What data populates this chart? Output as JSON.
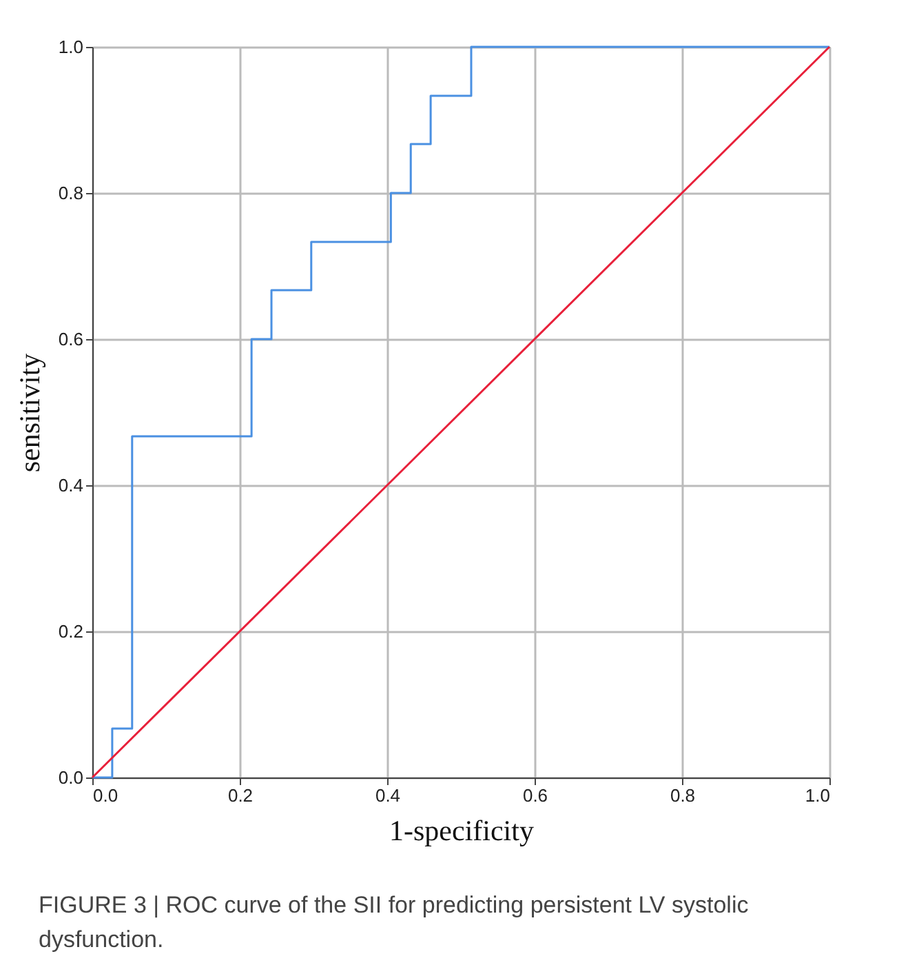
{
  "chart_data": {
    "type": "line",
    "xlabel": "1-specificity",
    "ylabel": "sensitivity",
    "annotations": [
      "FIGURE 3 | ROC curve of the SII for predicting persistent LV systolic dysfunction."
    ],
    "series": [
      {
        "type": "step",
        "color": "#4a90e2",
        "x": [
          0,
          0.027,
          0.054,
          0.216,
          0.243,
          0.297,
          0.405,
          0.432,
          0.459,
          0.514,
          1
        ],
        "values": [
          0,
          0.067,
          0.467,
          0.6,
          0.667,
          0.733,
          0.8,
          0.867,
          0.933,
          1,
          1
        ]
      },
      {
        "type": "line",
        "color": "#e8203a",
        "x": [
          0,
          1
        ],
        "values": [
          0,
          1
        ]
      }
    ],
    "xlim": [
      0,
      1
    ],
    "ylim": [
      0,
      1
    ],
    "xticks": [
      {
        "value": 0,
        "label": "0.0"
      },
      {
        "value": 0.2,
        "label": "0.2"
      },
      {
        "value": 0.4,
        "label": "0.4"
      },
      {
        "value": 0.6,
        "label": "0.6"
      },
      {
        "value": 0.8,
        "label": "0.8"
      },
      {
        "value": 1,
        "label": "1.0"
      }
    ],
    "yticks": [
      {
        "value": 0,
        "label": "0.0"
      },
      {
        "value": 0.2,
        "label": "0.2"
      },
      {
        "value": 0.4,
        "label": "0.4"
      },
      {
        "value": 0.6,
        "label": "0.6"
      },
      {
        "value": 0.8,
        "label": "0.8"
      },
      {
        "value": 1,
        "label": "1.0"
      }
    ],
    "grid": true
  }
}
